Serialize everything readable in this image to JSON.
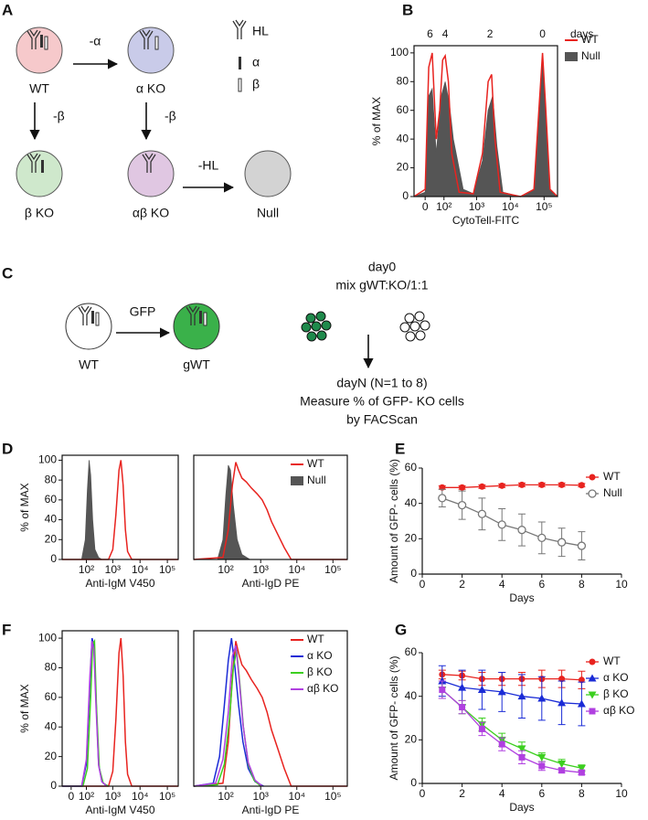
{
  "panel_labels": [
    "A",
    "B",
    "C",
    "D",
    "E",
    "F",
    "G"
  ],
  "diagram_a": {
    "cells": [
      "WT",
      "α KO",
      "β KO",
      "αβ KO",
      "Null"
    ],
    "arrows": [
      "-α",
      "-β",
      "-β",
      "-HL"
    ],
    "legend": [
      "HL",
      "α",
      "β"
    ]
  },
  "diagram_c": {
    "cells": [
      "WT",
      "gWT"
    ],
    "arrow": "GFP",
    "steps": [
      "day0",
      "mix gWT:KO/1:1",
      "dayN (N=1 to 8)",
      "Measure % of GFP- KO cells",
      "by FACScan"
    ]
  },
  "chart_data": [
    {
      "type": "flow-histogram",
      "xlabel": "CytoTell-FITC",
      "ylabel": "% of MAX",
      "xscale": "biexponential",
      "xlim": [
        -50,
        250000
      ],
      "xticks": [
        0,
        {
          "value": 100,
          "label": "10²"
        },
        {
          "value": 1000,
          "label": "10³"
        },
        {
          "value": 10000,
          "label": "10⁴"
        },
        {
          "value": 100000,
          "label": "10⁵"
        }
      ],
      "ylim": [
        0,
        105
      ],
      "yticks": [
        0,
        20,
        40,
        60,
        80,
        100
      ],
      "legend": "right-outside",
      "annotations": [
        {
          "text": "6",
          "x": 20
        },
        {
          "text": "4",
          "x": 110
        },
        {
          "text": "2",
          "x": 2500
        },
        {
          "text": "0",
          "x": 90000
        }
      ],
      "annotation_unit": "days",
      "series": [
        {
          "name": "WT",
          "color": "#e8231f",
          "filled": false,
          "x": [
            -50,
            0,
            15,
            30,
            50,
            70,
            90,
            110,
            140,
            180,
            300,
            800,
            1500,
            2200,
            2800,
            3500,
            5000,
            20000,
            50000,
            70000,
            90000,
            110000,
            150000,
            250000
          ],
          "values": [
            0,
            5,
            90,
            100,
            40,
            60,
            95,
            98,
            80,
            30,
            3,
            2,
            30,
            80,
            85,
            40,
            3,
            0,
            5,
            60,
            100,
            65,
            5,
            0
          ]
        },
        {
          "name": "Null",
          "color": "#555555",
          "filled": true,
          "x": [
            -50,
            0,
            15,
            30,
            50,
            80,
            110,
            150,
            200,
            400,
            800,
            1500,
            2200,
            3000,
            4000,
            6000,
            20000,
            50000,
            70000,
            90000,
            110000,
            150000,
            250000
          ],
          "values": [
            0,
            3,
            70,
            75,
            30,
            70,
            80,
            65,
            40,
            5,
            2,
            25,
            60,
            70,
            35,
            3,
            0,
            5,
            55,
            95,
            60,
            5,
            0
          ]
        }
      ]
    },
    {
      "type": "flow-histogram",
      "xlabel": "Anti-IgM V450",
      "ylabel": "% of MAX",
      "xscale": "biexponential",
      "xlim": [
        -50,
        250000
      ],
      "xticks": [
        {
          "value": 100,
          "label": "10²"
        },
        {
          "value": 1000,
          "label": "10³"
        },
        {
          "value": 10000,
          "label": "10⁴"
        },
        {
          "value": 100000,
          "label": "10⁵"
        }
      ],
      "ylim": [
        0,
        105
      ],
      "yticks": [
        0,
        20,
        40,
        60,
        80,
        100
      ],
      "series": [
        {
          "color": "#e8231f",
          "filled": false,
          "x": [
            -50,
            700,
            1000,
            1300,
            1700,
            2000,
            2400,
            2900,
            3500,
            5000,
            250000
          ],
          "values": [
            0,
            0,
            10,
            45,
            90,
            100,
            75,
            30,
            8,
            0,
            0
          ]
        },
        {
          "color": "#555555",
          "filled": true,
          "x": [
            -50,
            60,
            90,
            110,
            130,
            150,
            180,
            220,
            300,
            400
          ],
          "values": [
            0,
            0,
            20,
            70,
            100,
            85,
            40,
            10,
            2,
            0
          ]
        }
      ]
    },
    {
      "type": "flow-histogram",
      "xlabel": "Anti-IgD PE",
      "xscale": "biexponential",
      "xlim": [
        -50,
        250000
      ],
      "xticks": [
        {
          "value": 100,
          "label": "10²"
        },
        {
          "value": 1000,
          "label": "10³"
        },
        {
          "value": 10000,
          "label": "10⁴"
        },
        {
          "value": 100000,
          "label": "10⁵"
        }
      ],
      "ylim": [
        0,
        105
      ],
      "legend": "upper-right",
      "series": [
        {
          "name": "WT",
          "color": "#e8231f",
          "filled": false,
          "x": [
            -50,
            80,
            120,
            160,
            200,
            240,
            300,
            400,
            550,
            800,
            1100,
            1500,
            2000,
            3000,
            4500,
            7000,
            250000
          ],
          "values": [
            0,
            2,
            30,
            75,
            98,
            90,
            82,
            78,
            72,
            66,
            60,
            50,
            38,
            25,
            12,
            0,
            0
          ]
        },
        {
          "name": "Null",
          "color": "#555555",
          "filled": true,
          "x": [
            -50,
            50,
            80,
            100,
            120,
            140,
            170,
            220,
            300,
            500
          ],
          "values": [
            0,
            0,
            20,
            65,
            95,
            90,
            55,
            20,
            5,
            0
          ]
        }
      ]
    },
    {
      "type": "line",
      "xlabel": "Days",
      "ylabel": "Amount of GFP- cells (%)",
      "x": [
        1,
        2,
        3,
        4,
        5,
        6,
        7,
        8
      ],
      "xlim": [
        0,
        10
      ],
      "xticks": [
        0,
        2,
        4,
        6,
        8,
        10
      ],
      "ylim": [
        0,
        60
      ],
      "yticks": [
        0,
        20,
        40,
        60
      ],
      "legend": "upper-right",
      "series": [
        {
          "name": "WT",
          "color": "#e8231f",
          "marker": "circle",
          "values": [
            49,
            49,
            49.5,
            50,
            50.5,
            50.5,
            50.5,
            50.3
          ],
          "errors": [
            1,
            1,
            1,
            1,
            1,
            1,
            1,
            1
          ]
        },
        {
          "name": "Null",
          "color": "#777777",
          "marker": "open-circle",
          "values": [
            43,
            39,
            34,
            28,
            25,
            20.5,
            18,
            16
          ],
          "errors": [
            5,
            8,
            9,
            9,
            9,
            9,
            8,
            8
          ]
        }
      ]
    },
    {
      "type": "flow-histogram",
      "xlabel": "Anti-IgM V450",
      "ylabel": "% of MAX",
      "xscale": "biexponential",
      "xlim": [
        -50,
        250000
      ],
      "xticks": [
        0,
        {
          "value": 100,
          "label": "10²"
        },
        {
          "value": 1000,
          "label": "10³"
        },
        {
          "value": 10000,
          "label": "10⁴"
        },
        {
          "value": 100000,
          "label": "10⁵"
        }
      ],
      "ylim": [
        0,
        105
      ],
      "yticks": [
        0,
        20,
        40,
        60,
        80,
        100
      ],
      "series": [
        {
          "color": "#e8231f",
          "filled": false,
          "x": [
            -50,
            700,
            1000,
            1300,
            1700,
            2000,
            2400,
            2900,
            3500,
            5000,
            250000
          ],
          "values": [
            0,
            0,
            10,
            45,
            90,
            100,
            75,
            30,
            8,
            0,
            0
          ]
        },
        {
          "color": "#1a2bd6",
          "filled": false,
          "x": [
            -50,
            60,
            100,
            140,
            170,
            200,
            240,
            300,
            400,
            600
          ],
          "values": [
            0,
            0,
            15,
            70,
            100,
            95,
            60,
            15,
            3,
            0
          ]
        },
        {
          "color": "#3ccf1f",
          "filled": false,
          "x": [
            -50,
            70,
            110,
            150,
            180,
            210,
            250,
            320,
            450,
            700
          ],
          "values": [
            0,
            0,
            12,
            60,
            96,
            98,
            55,
            12,
            2,
            0
          ]
        },
        {
          "color": "#b040e0",
          "filled": false,
          "x": [
            -50,
            60,
            100,
            140,
            170,
            200,
            240,
            300,
            400,
            600
          ],
          "values": [
            0,
            0,
            18,
            75,
            98,
            92,
            55,
            14,
            3,
            0
          ]
        }
      ]
    },
    {
      "type": "flow-histogram",
      "xlabel": "Anti-IgD PE",
      "xscale": "biexponential",
      "xlim": [
        -50,
        250000
      ],
      "xticks": [
        {
          "value": 100,
          "label": "10²"
        },
        {
          "value": 1000,
          "label": "10³"
        },
        {
          "value": 10000,
          "label": "10⁴"
        },
        {
          "value": 100000,
          "label": "10⁵"
        }
      ],
      "ylim": [
        0,
        105
      ],
      "legend": "upper-right",
      "series": [
        {
          "name": "WT",
          "color": "#e8231f",
          "filled": false,
          "x": [
            -50,
            80,
            120,
            160,
            200,
            240,
            300,
            400,
            550,
            800,
            1100,
            1500,
            2000,
            3000,
            4500,
            7000,
            250000
          ],
          "values": [
            0,
            2,
            30,
            75,
            98,
            90,
            82,
            78,
            72,
            66,
            60,
            50,
            38,
            25,
            12,
            0,
            0
          ]
        },
        {
          "name": "α KO",
          "color": "#1a2bd6",
          "filled": false,
          "x": [
            -50,
            30,
            60,
            90,
            120,
            150,
            190,
            240,
            320,
            450,
            700,
            1200
          ],
          "values": [
            0,
            2,
            20,
            55,
            85,
            100,
            80,
            55,
            30,
            12,
            3,
            0
          ]
        },
        {
          "name": "β KO",
          "color": "#3ccf1f",
          "filled": false,
          "x": [
            -50,
            50,
            90,
            130,
            170,
            210,
            260,
            330,
            450,
            650,
            1000
          ],
          "values": [
            0,
            1,
            15,
            45,
            80,
            92,
            70,
            40,
            15,
            4,
            0
          ]
        },
        {
          "name": "αβ KO",
          "color": "#b040e0",
          "filled": false,
          "x": [
            -50,
            40,
            80,
            120,
            160,
            200,
            250,
            320,
            450,
            700,
            1100
          ],
          "values": [
            0,
            2,
            18,
            50,
            88,
            95,
            72,
            42,
            16,
            4,
            0
          ]
        }
      ]
    },
    {
      "type": "line",
      "xlabel": "Days",
      "ylabel": "Amount of GFP- cells (%)",
      "x": [
        1,
        2,
        3,
        4,
        5,
        6,
        7,
        8
      ],
      "xlim": [
        0,
        10
      ],
      "xticks": [
        0,
        2,
        4,
        6,
        8,
        10
      ],
      "ylim": [
        0,
        60
      ],
      "yticks": [
        0,
        20,
        40,
        60
      ],
      "legend": "upper-right",
      "series": [
        {
          "name": "WT",
          "color": "#e8231f",
          "marker": "circle",
          "values": [
            50,
            49.5,
            48,
            48,
            48,
            48,
            48,
            47.5
          ],
          "errors": [
            2,
            2,
            3,
            3,
            3,
            4,
            4,
            4
          ]
        },
        {
          "name": "α KO",
          "color": "#1a2bd6",
          "marker": "triangle",
          "values": [
            47,
            44,
            43,
            42,
            40,
            39,
            37,
            36.5
          ],
          "errors": [
            7,
            8,
            9,
            9,
            10,
            10,
            10,
            10
          ]
        },
        {
          "name": "β KO",
          "color": "#3ccf1f",
          "marker": "triangle-down",
          "values": [
            43,
            35,
            27,
            20,
            16,
            12,
            9,
            7
          ],
          "errors": [
            4,
            3,
            3,
            3,
            3,
            2,
            2,
            1.5
          ]
        },
        {
          "name": "αβ KO",
          "color": "#b040e0",
          "marker": "square",
          "values": [
            43,
            35,
            25,
            18,
            12,
            8,
            6,
            5
          ],
          "errors": [
            4,
            3,
            3,
            3,
            3,
            2,
            1,
            1
          ]
        }
      ]
    }
  ]
}
